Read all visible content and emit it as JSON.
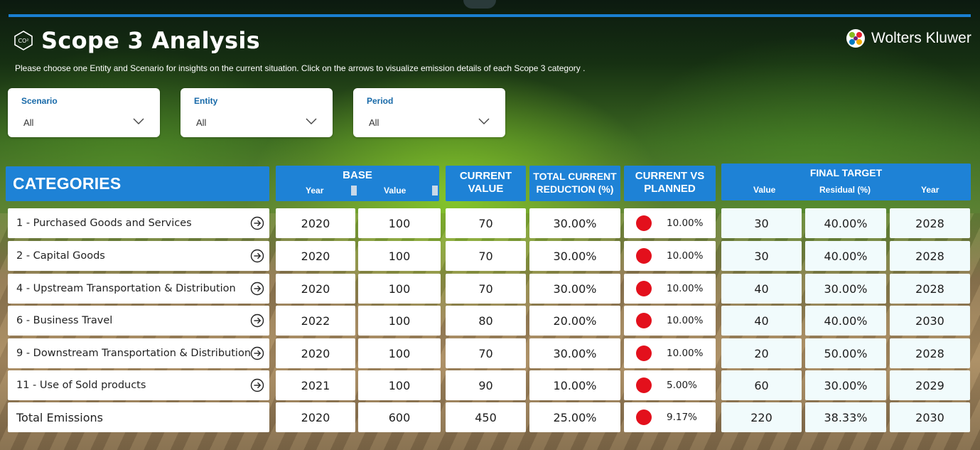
{
  "header": {
    "title": "Scope 3 Analysis",
    "brand": "Wolters Kluwer",
    "subtitle": "Please choose one Entity and Scenario for insights on the current situation. Click on the arrows to visualize emission details of each Scope 3 category .",
    "icon": "co2-hexagon-icon"
  },
  "filters": [
    {
      "label": "Scenario",
      "value": "All"
    },
    {
      "label": "Entity",
      "value": "All"
    },
    {
      "label": "Period",
      "value": "All"
    }
  ],
  "table": {
    "headers": {
      "categories": "CATEGORIES",
      "base": "BASE",
      "base_year": "Year",
      "base_value": "Value",
      "current_value_1": "CURRENT",
      "current_value_2": "VALUE",
      "total_reduction_1": "TOTAL CURRENT",
      "total_reduction_2": "REDUCTION (%)",
      "vs_planned_1": "CURRENT VS",
      "vs_planned_2": "PLANNED",
      "final_target": "FINAL TARGET",
      "target_value": "Value",
      "target_residual": "Residual (%)",
      "target_year": "Year"
    },
    "rows": [
      {
        "category": "1 - Purchased Goods and Services",
        "base_year": "2020",
        "base_value": "100",
        "current_value": "70",
        "reduction": "30.00%",
        "planned": "10.00%",
        "target_value": "30",
        "residual": "40.00%",
        "target_year": "2028"
      },
      {
        "category": "2 - Capital Goods",
        "base_year": "2020",
        "base_value": "100",
        "current_value": "70",
        "reduction": "30.00%",
        "planned": "10.00%",
        "target_value": "30",
        "residual": "40.00%",
        "target_year": "2028"
      },
      {
        "category": "4 - Upstream Transportation & Distribution",
        "base_year": "2020",
        "base_value": "100",
        "current_value": "70",
        "reduction": "30.00%",
        "planned": "10.00%",
        "target_value": "40",
        "residual": "30.00%",
        "target_year": "2028"
      },
      {
        "category": "6 - Business Travel",
        "base_year": "2022",
        "base_value": "100",
        "current_value": "80",
        "reduction": "20.00%",
        "planned": "10.00%",
        "target_value": "40",
        "residual": "40.00%",
        "target_year": "2030"
      },
      {
        "category": "9 - Downstream Transportation & Distribution",
        "base_year": "2020",
        "base_value": "100",
        "current_value": "70",
        "reduction": "30.00%",
        "planned": "10.00%",
        "target_value": "20",
        "residual": "50.00%",
        "target_year": "2028"
      },
      {
        "category": "11 - Use of Sold products",
        "base_year": "2021",
        "base_value": "100",
        "current_value": "90",
        "reduction": "10.00%",
        "planned": "5.00%",
        "target_value": "60",
        "residual": "30.00%",
        "target_year": "2029"
      }
    ],
    "total": {
      "category": "Total Emissions",
      "base_year": "2020",
      "base_value": "600",
      "current_value": "450",
      "reduction": "25.00%",
      "planned": "9.17%",
      "target_value": "220",
      "residual": "38.33%",
      "target_year": "2030"
    }
  },
  "colors": {
    "header_blue": "#1e82d6",
    "status_red": "#e3101c",
    "label_blue": "#1769a8"
  }
}
